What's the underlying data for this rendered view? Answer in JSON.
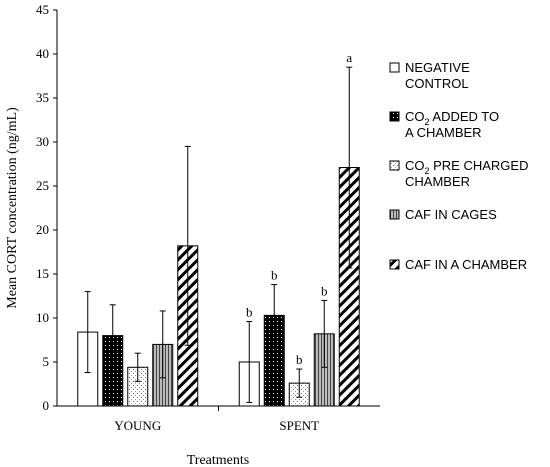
{
  "chart_data": {
    "type": "bar",
    "categories": [
      "YOUNG",
      "SPENT"
    ],
    "xlabel": "Treatments",
    "ylabel": "Mean CORT concentration (ng/mL)",
    "ylim": [
      0,
      45
    ],
    "yticks": [
      0,
      5,
      10,
      15,
      20,
      25,
      30,
      35,
      40,
      45
    ],
    "grid": false,
    "legend_position": "right",
    "series": [
      {
        "name_lines": [
          {
            "text": "NEGATIVE"
          },
          {
            "text": "CONTROL"
          }
        ],
        "pattern": "white",
        "values": [
          8.4,
          5.0
        ],
        "errors": [
          4.6,
          4.6
        ],
        "letters": [
          "",
          "b"
        ]
      },
      {
        "name_lines": [
          {
            "text": "CO",
            "sub": "2",
            "rest": " ADDED TO"
          },
          {
            "text": "A CHAMBER"
          }
        ],
        "pattern": "dots-black",
        "values": [
          8.0,
          10.3
        ],
        "errors": [
          3.5,
          3.5
        ],
        "letters": [
          "",
          "b"
        ]
      },
      {
        "name_lines": [
          {
            "text": "CO",
            "sub": "2",
            "rest": " PRE CHARGED"
          },
          {
            "text": "CHAMBER"
          }
        ],
        "pattern": "dots-light",
        "values": [
          4.4,
          2.6
        ],
        "errors": [
          1.6,
          1.6
        ],
        "letters": [
          "",
          "b"
        ]
      },
      {
        "name_lines": [
          {
            "text": "CAF IN CAGES"
          }
        ],
        "pattern": "vertical-lines",
        "values": [
          7.0,
          8.2
        ],
        "errors": [
          3.8,
          3.8
        ],
        "letters": [
          "",
          "b"
        ]
      },
      {
        "name_lines": [
          {
            "text": "CAF IN A CHAMBER"
          }
        ],
        "pattern": "diagonal",
        "values": [
          18.2,
          27.1
        ],
        "errors": [
          11.3,
          11.4
        ],
        "letters": [
          "",
          "a"
        ]
      }
    ]
  }
}
